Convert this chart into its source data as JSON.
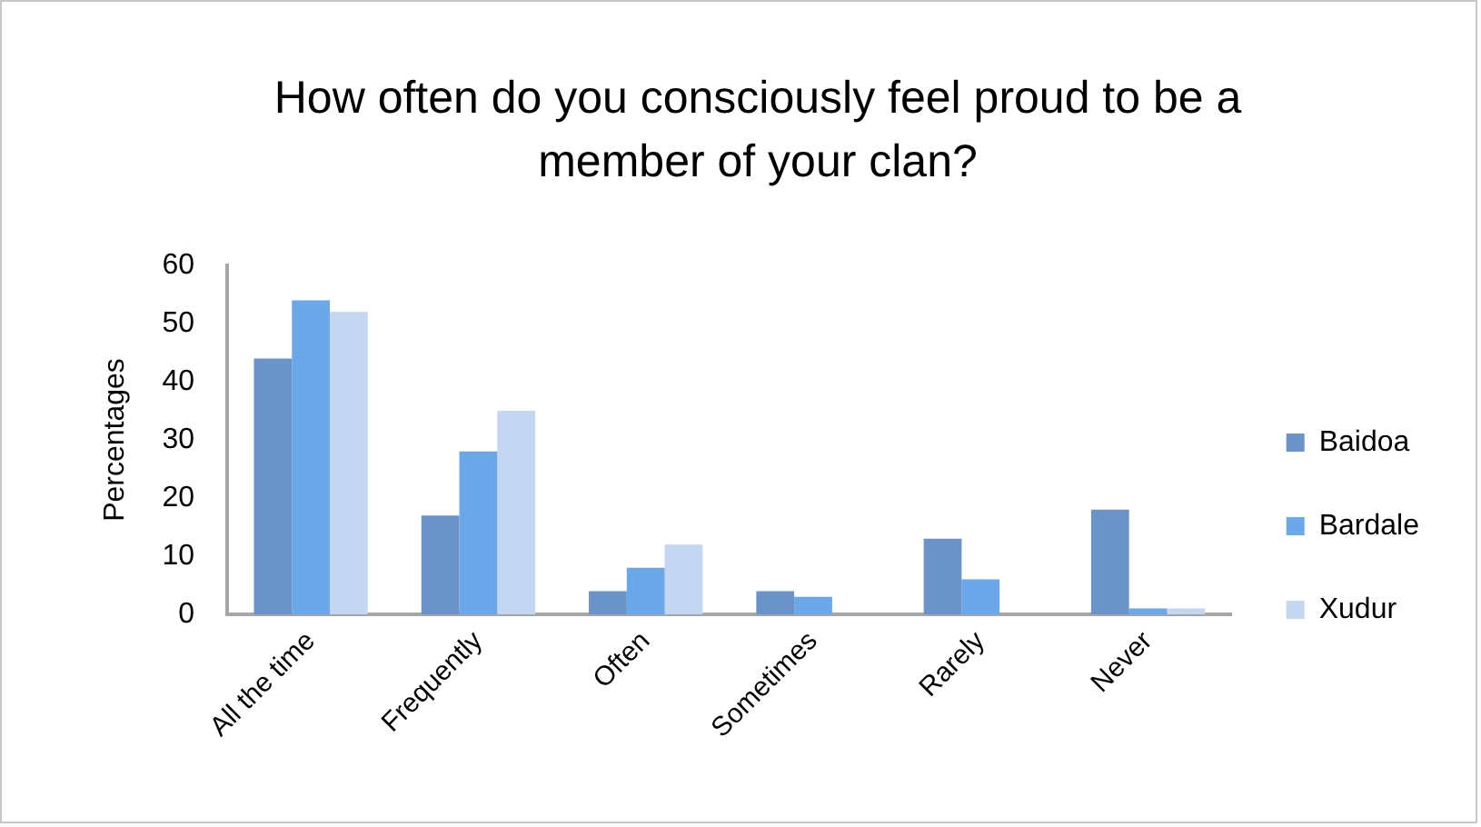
{
  "chart_data": {
    "type": "bar",
    "title": "How often do you consciously feel proud to be a member of your clan?",
    "ylabel": "Percentages",
    "categories": [
      "All the time",
      "Frequently",
      "Often",
      "Sometimes",
      "Rarely",
      "Never"
    ],
    "series": [
      {
        "name": "Baidoa",
        "color": "#6a93c9",
        "values": [
          44,
          17,
          4,
          4,
          13,
          18
        ]
      },
      {
        "name": "Bardale",
        "color": "#6aa8ea",
        "values": [
          54,
          28,
          8,
          3,
          6,
          1
        ]
      },
      {
        "name": "Xudur",
        "color": "#c3d6f2",
        "values": [
          52,
          35,
          12,
          0,
          0,
          1
        ]
      }
    ],
    "ylim": [
      0,
      60
    ],
    "yticks": [
      0,
      10,
      20,
      30,
      40,
      50,
      60
    ],
    "legend": "right"
  }
}
